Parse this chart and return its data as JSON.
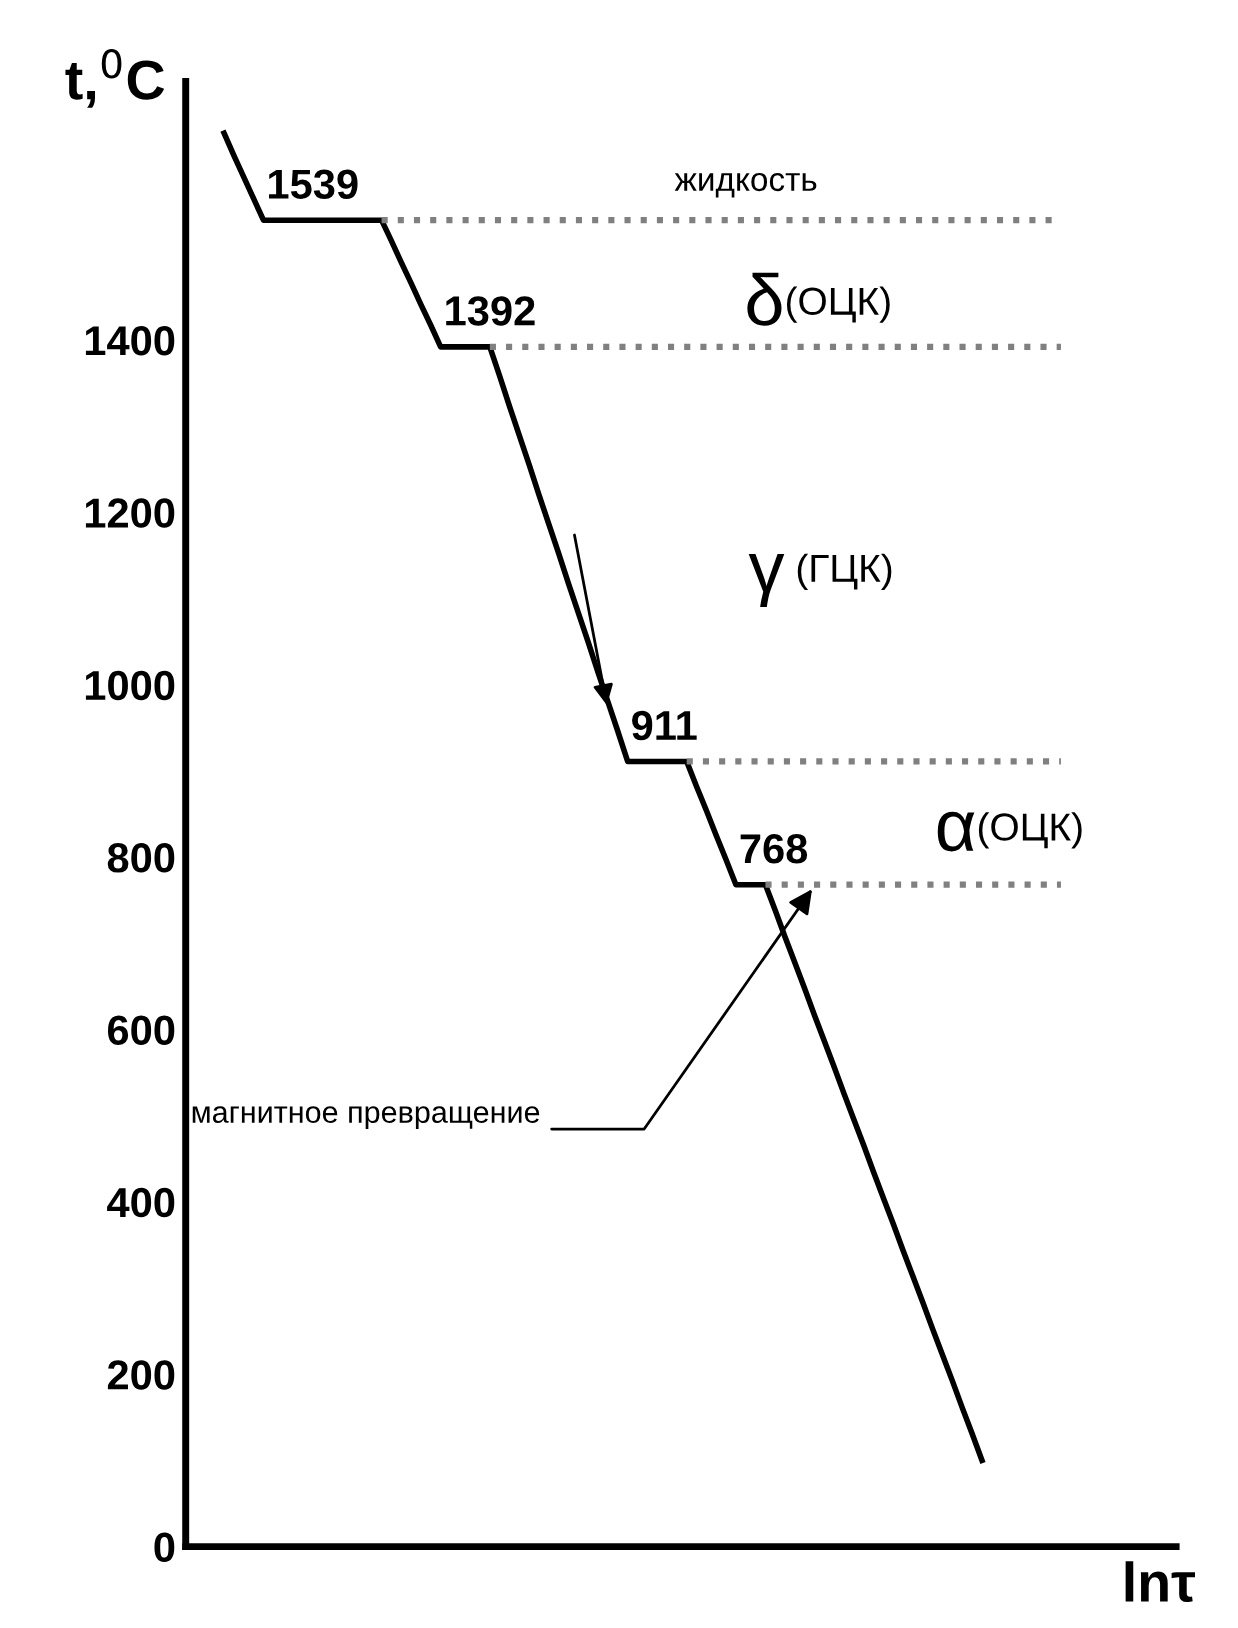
{
  "chart_data": {
    "type": "line",
    "ylabel": "t,$^{0}$C",
    "xlabel": "lnτ",
    "ylim": [
      0,
      1700
    ],
    "yticks": [
      0,
      200,
      400,
      600,
      800,
      1000,
      1200,
      1400
    ],
    "tick_labels": "y",
    "marker": "none",
    "categories": [
      null,
      null,
      null,
      null,
      null,
      null,
      null,
      null,
      null,
      null,
      null,
      null,
      null,
      null,
      null,
      null,
      null,
      null,
      null,
      null,
      null,
      null,
      null,
      null,
      null,
      null,
      null,
      null,
      null,
      null,
      null,
      null,
      null,
      null,
      null,
      null,
      null,
      null,
      null,
      null,
      null,
      null,
      null,
      null,
      null,
      null,
      null,
      null,
      null,
      null,
      null,
      null,
      null,
      null,
      null,
      null,
      null,
      null,
      null,
      null,
      null,
      null,
      null,
      null,
      null,
      null,
      null,
      null,
      null,
      null,
      null,
      null,
      null,
      null,
      null,
      null,
      null,
      null
    ],
    "series": [
      {
        "color": "#000000",
        "line_style": "solid",
        "values": [
          1640,
          1614,
          1589,
          1564,
          1539,
          1539,
          1539,
          1539,
          1539,
          1539,
          1539,
          1539,
          1539,
          1539,
          1539,
          1539,
          1539,
          1515,
          1490,
          1466,
          1441,
          1417,
          1392,
          1392,
          1392,
          1392,
          1392,
          1392,
          1358,
          1323,
          1289,
          1255,
          1220,
          1186,
          1152,
          1117,
          1083,
          1049,
          1014,
          980,
          946,
          911,
          911,
          911,
          911,
          911,
          911,
          911,
          882,
          854,
          825,
          797,
          768,
          768,
          768,
          768,
          738,
          707,
          677,
          647,
          616,
          586,
          556,
          525,
          495,
          465,
          434,
          404,
          374,
          343,
          313,
          283,
          252,
          222,
          192,
          161,
          131,
          100
        ],
        "value_labels": [
          null,
          null,
          null,
          null,
          "1539",
          null,
          null,
          null,
          null,
          null,
          null,
          null,
          null,
          null,
          null,
          null,
          null,
          null,
          null,
          null,
          null,
          null,
          "1392",
          null,
          null,
          null,
          null,
          null,
          null,
          null,
          null,
          null,
          null,
          null,
          null,
          null,
          null,
          null,
          null,
          null,
          null,
          "911",
          null,
          null,
          null,
          null,
          null,
          null,
          null,
          null,
          null,
          null,
          "768",
          null,
          null,
          null,
          null,
          null,
          null,
          null,
          null,
          null,
          null,
          null,
          null,
          null,
          null,
          null,
          null,
          null,
          null,
          null,
          null,
          null,
          null,
          null,
          null,
          null
        ]
      }
    ],
    "ref_lines": [
      {
        "axis": "y",
        "value": 1539,
        "color": "#808080",
        "line_style": "dotted"
      },
      {
        "axis": "y",
        "value": 1392,
        "color": "#808080",
        "line_style": "dotted"
      },
      {
        "axis": "y",
        "value": 911,
        "color": "#808080",
        "line_style": "dotted"
      },
      {
        "axis": "y",
        "value": 768,
        "color": "#808080",
        "line_style": "dotted"
      }
    ],
    "annotations": [
      "жидкость",
      "δ(ОЦК)",
      "γ (ГЦК)",
      "α(ОЦК)",
      "магнитное превращение"
    ]
  }
}
